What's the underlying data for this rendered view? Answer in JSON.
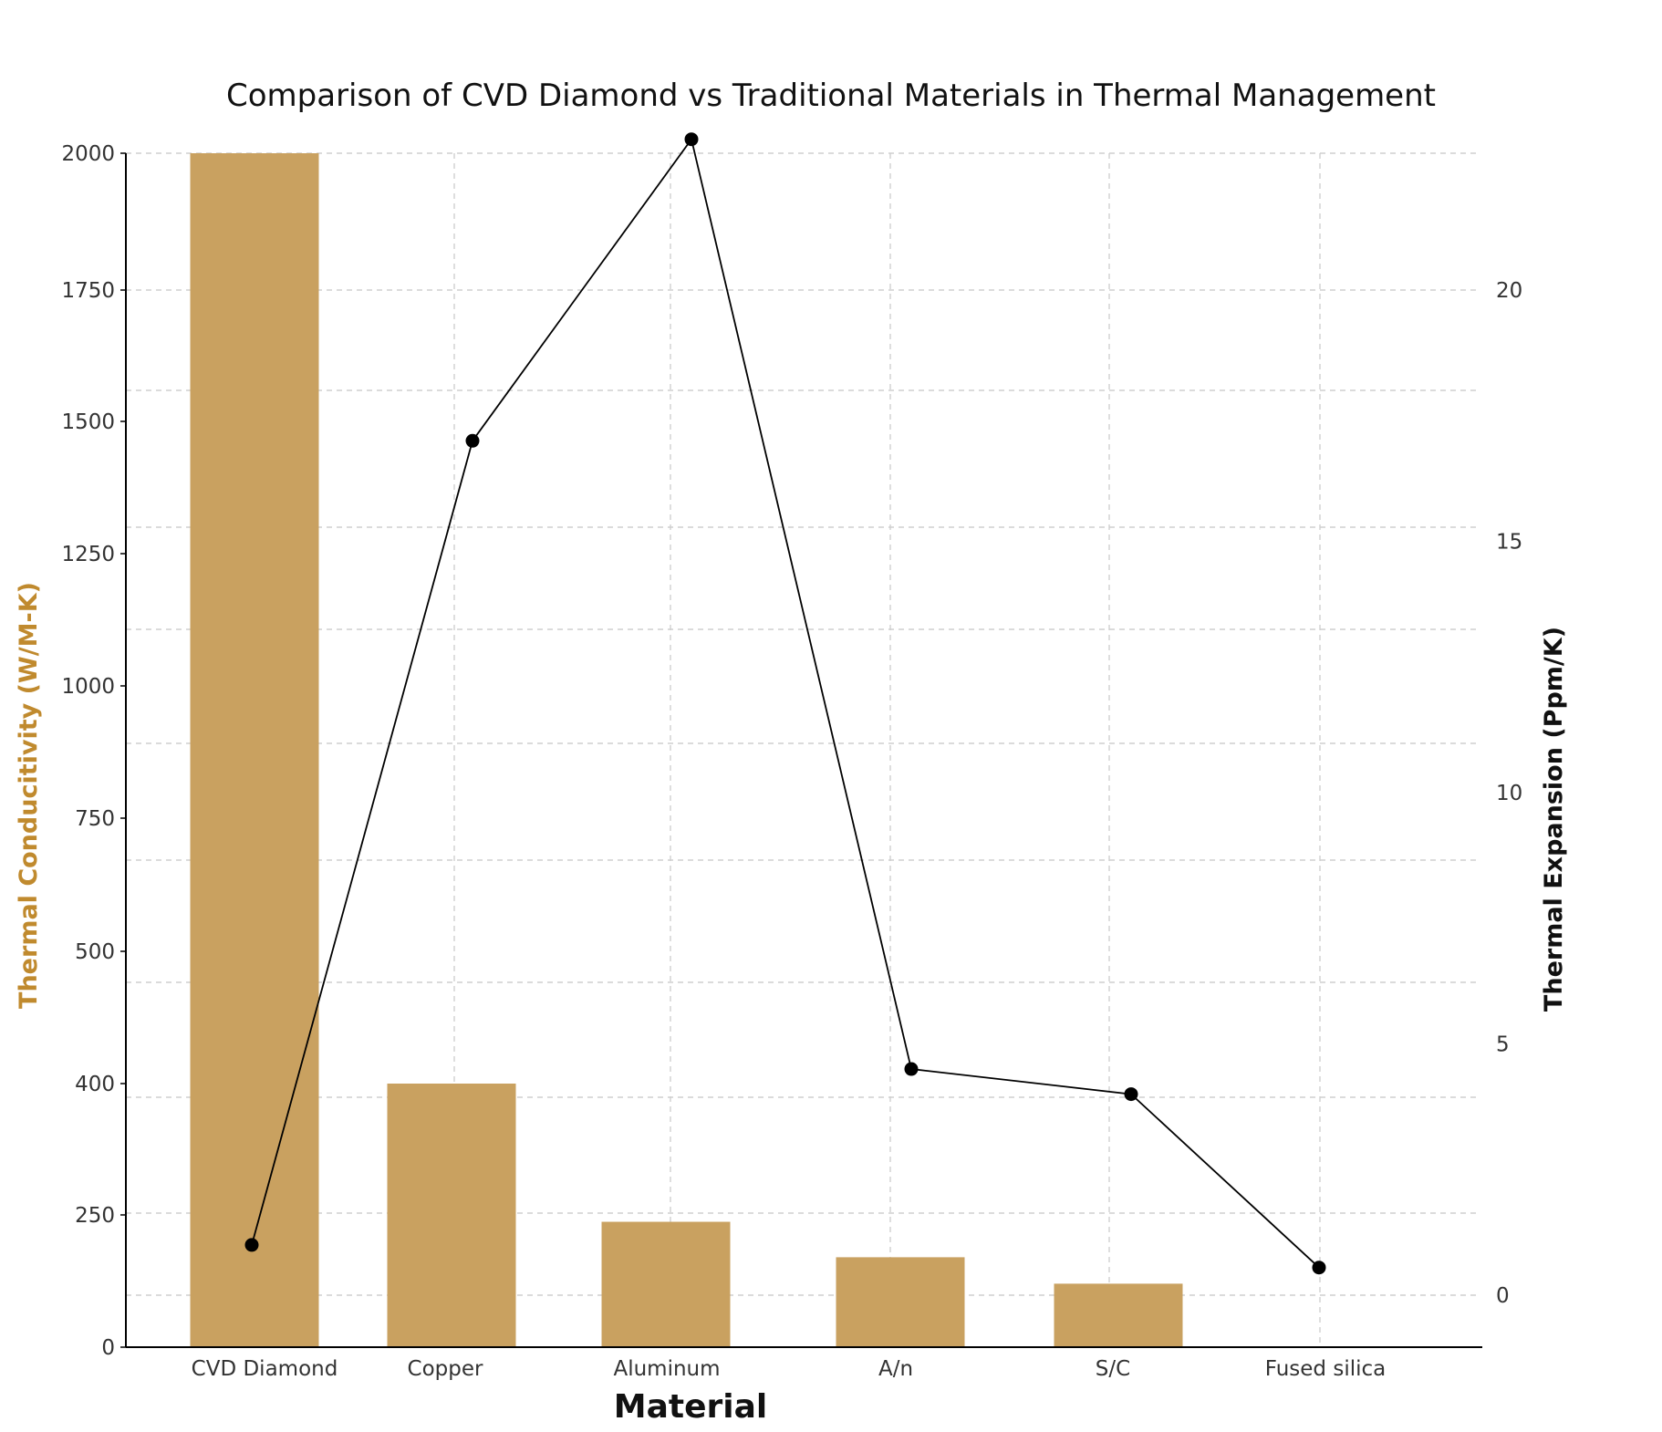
{
  "colors": {
    "bar": "#c9a160",
    "line": "#000000",
    "left_axis_title": "#c08a2e",
    "grid": "#cfcfcf"
  },
  "chart_data": {
    "type": "bar",
    "title": "Comparison of CVD Diamond vs Traditional Materials in Thermal Management",
    "xlabel": "Material",
    "ylabel": "Thermal Conducitivity (W/M-K)",
    "y2label": "Thermal Expansion (Ppm/K)",
    "categories": [
      "CVD Diamond",
      "Copper",
      "Aluminum",
      "A/n",
      "S/C",
      "Fused silica"
    ],
    "series": [
      {
        "kind": "bar",
        "axis": "left",
        "values": [
          2000,
          400,
          237,
          170,
          120,
          1.4
        ]
      },
      {
        "kind": "line",
        "axis": "right",
        "values": [
          1.0,
          17,
          23.0,
          4.5,
          4.0,
          0.55
        ]
      }
    ],
    "ylim": [
      0,
      2000
    ],
    "y_ticks": [
      0,
      250,
      400,
      500,
      750,
      1000,
      1250,
      1500,
      1750,
      2000
    ],
    "y_tick_labels": [
      "0",
      "250",
      "400",
      "500",
      "750",
      "1000",
      "1250",
      "1500",
      "1750",
      "2000"
    ],
    "y2lim": [
      -0.6,
      24.5
    ],
    "y2_ticks": [
      0,
      5,
      10,
      15,
      20
    ],
    "y2_tick_labels": [
      "0",
      "5",
      "10",
      "15",
      "20"
    ],
    "grid": true
  }
}
